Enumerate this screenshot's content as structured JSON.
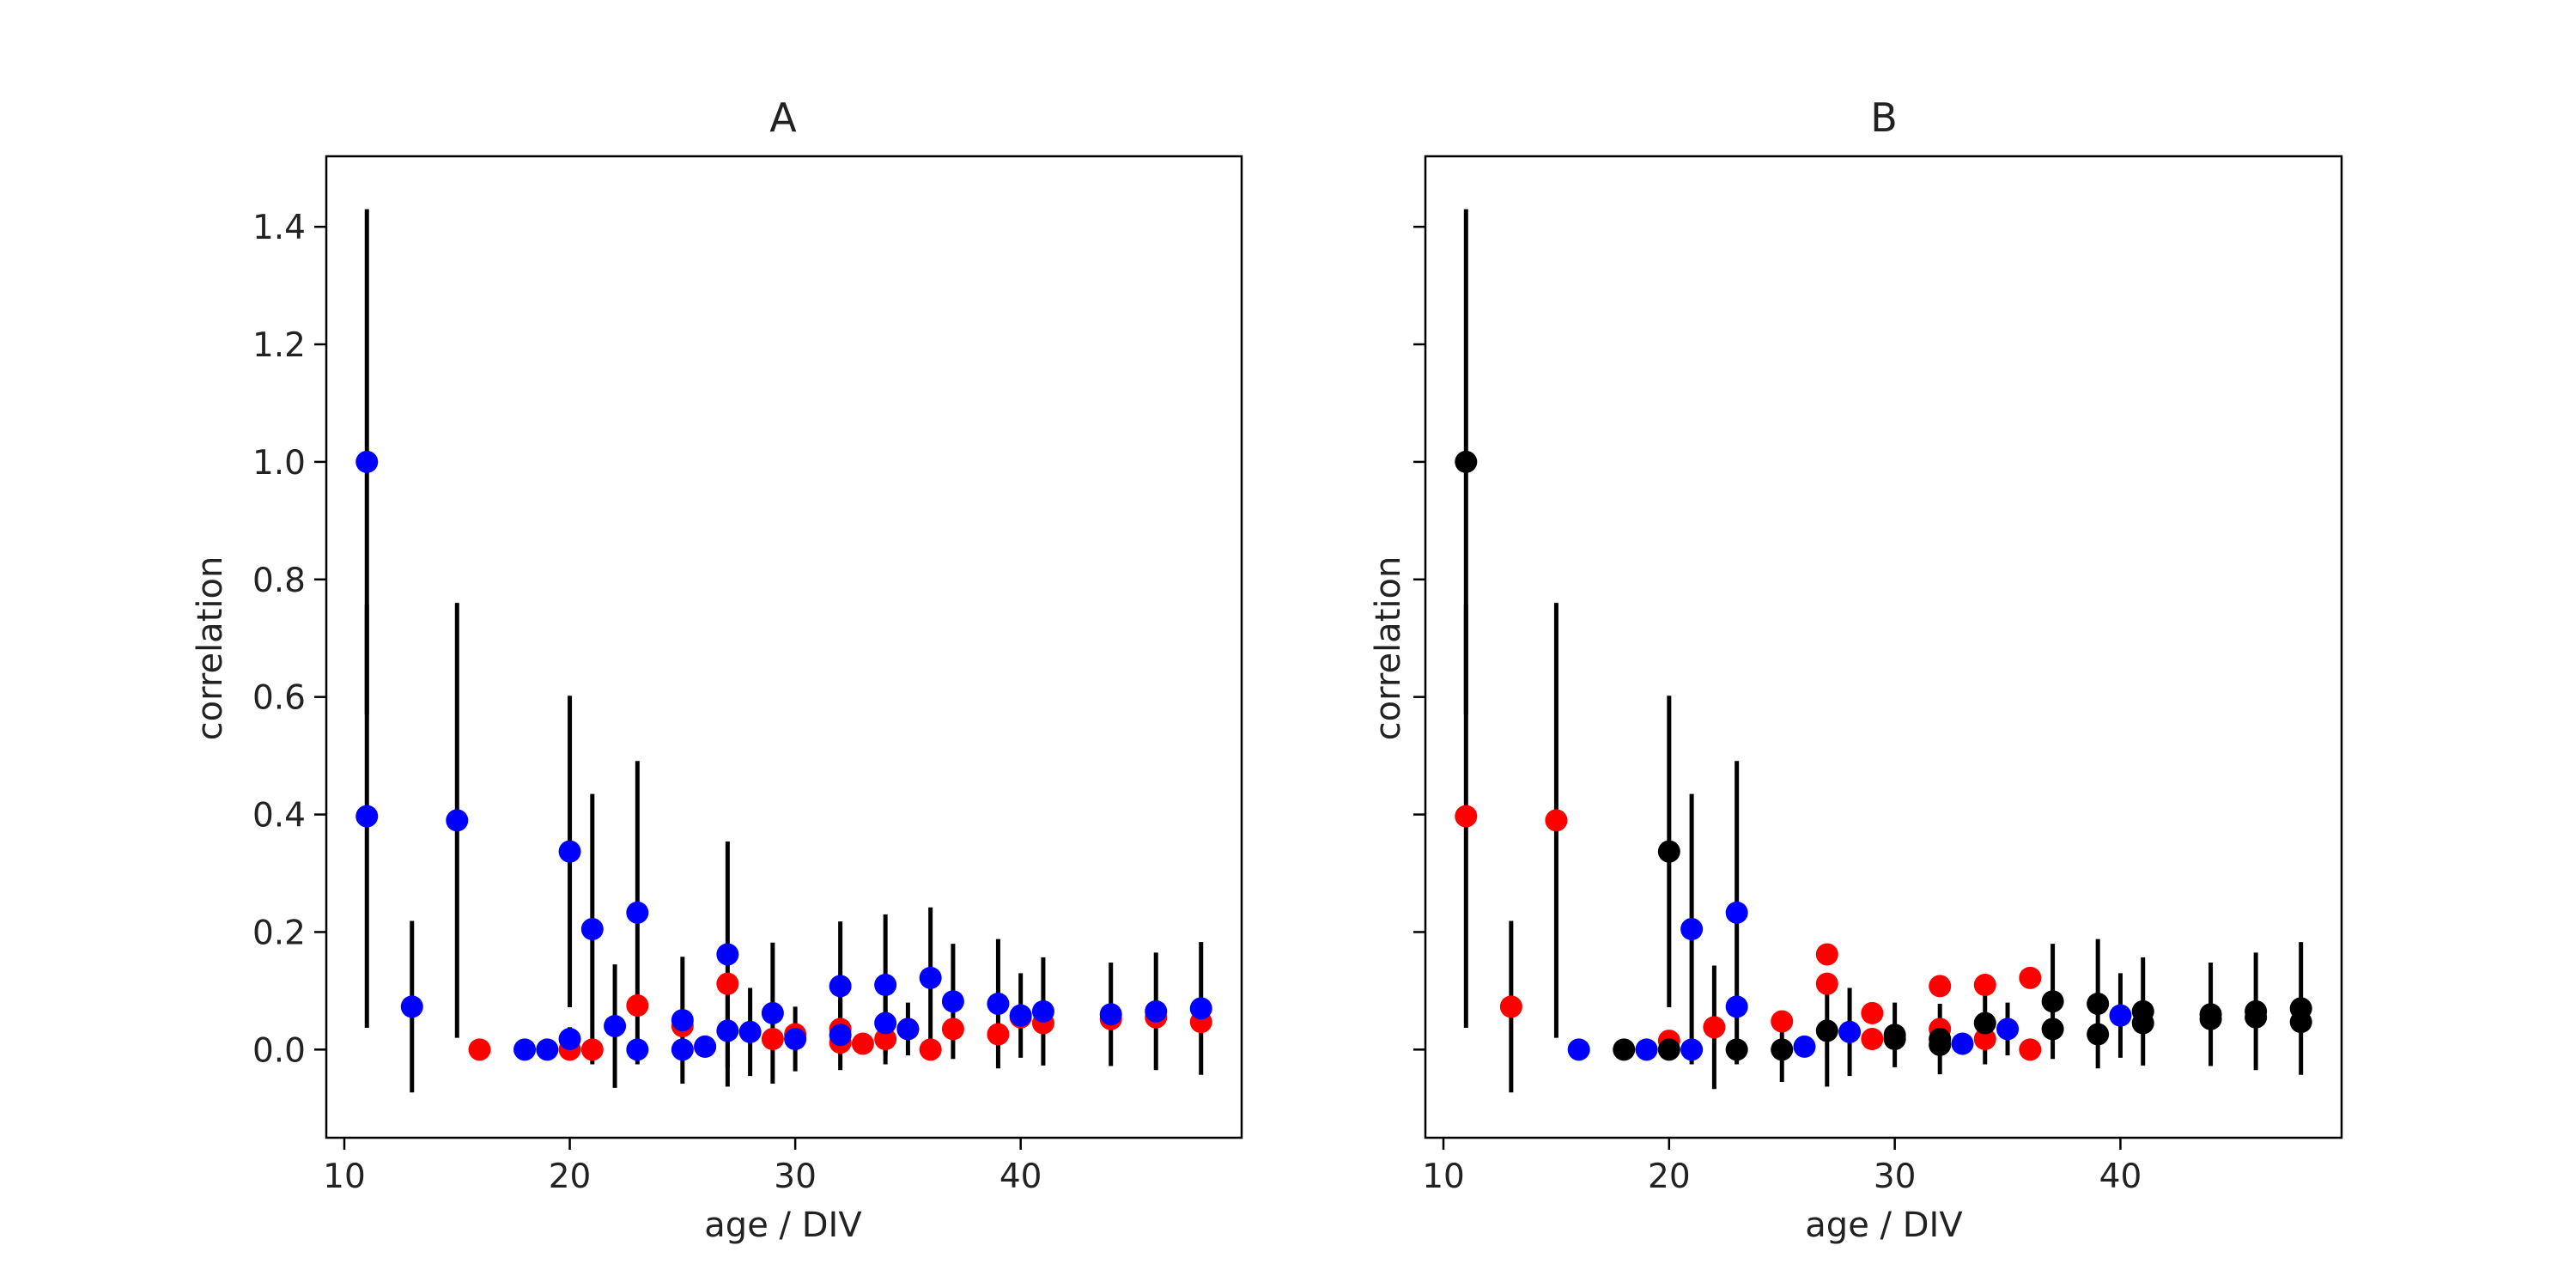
{
  "chart_data": [
    {
      "type": "scatter",
      "title": "A",
      "xlabel": "age / DIV",
      "ylabel": "correlation",
      "xlim": [
        9.2,
        49.8
      ],
      "ylim": [
        -0.15,
        1.52
      ],
      "xticks": [
        10,
        20,
        30,
        40
      ],
      "yticks": [
        0.0,
        0.2,
        0.4,
        0.6,
        0.8,
        1.0,
        1.2,
        1.4
      ],
      "grid": false,
      "legend": "none",
      "series": [
        {
          "color": "#ff0000",
          "points": [
            {
              "x": 16,
              "y": 0.0
            },
            {
              "x": 20,
              "y": 0.0
            },
            {
              "x": 21,
              "y": 0.0
            },
            {
              "x": 23,
              "y": 0.075
            },
            {
              "x": 25,
              "y": 0.04
            },
            {
              "x": 26,
              "y": 0.005
            },
            {
              "x": 27,
              "y": 0.112
            },
            {
              "x": 29,
              "y": 0.018
            },
            {
              "x": 30,
              "y": 0.026
            },
            {
              "x": 32,
              "y": 0.012
            },
            {
              "x": 32,
              "y": 0.035
            },
            {
              "x": 33,
              "y": 0.01
            },
            {
              "x": 34,
              "y": 0.018
            },
            {
              "x": 35,
              "y": 0.035
            },
            {
              "x": 36,
              "y": 0.0
            },
            {
              "x": 37,
              "y": 0.035
            },
            {
              "x": 39,
              "y": 0.026
            },
            {
              "x": 40,
              "y": 0.055
            },
            {
              "x": 41,
              "y": 0.045
            },
            {
              "x": 44,
              "y": 0.052
            },
            {
              "x": 46,
              "y": 0.055
            },
            {
              "x": 48,
              "y": 0.047
            }
          ]
        },
        {
          "color": "#0000ff",
          "points": [
            {
              "x": 11,
              "y": 1.0,
              "err": 0.43
            },
            {
              "x": 11,
              "y": 0.397,
              "err": 0.36
            },
            {
              "x": 13,
              "y": 0.073,
              "err": 0.146
            },
            {
              "x": 15,
              "y": 0.39,
              "err": 0.37
            },
            {
              "x": 18,
              "y": 0.0
            },
            {
              "x": 19,
              "y": 0.0
            },
            {
              "x": 20,
              "y": 0.337,
              "err": 0.265
            },
            {
              "x": 20,
              "y": 0.018,
              "err": 0.02
            },
            {
              "x": 21,
              "y": 0.205,
              "err": 0.23
            },
            {
              "x": 22,
              "y": 0.04,
              "err": 0.105
            },
            {
              "x": 23,
              "y": 0.233,
              "err": 0.258
            },
            {
              "x": 23,
              "y": 0.0,
              "err": 0.02
            },
            {
              "x": 25,
              "y": 0.05,
              "err": 0.108
            },
            {
              "x": 25,
              "y": 0.0
            },
            {
              "x": 26,
              "y": 0.005
            },
            {
              "x": 27,
              "y": 0.162,
              "err": 0.192
            },
            {
              "x": 27,
              "y": 0.032,
              "err": 0.095
            },
            {
              "x": 28,
              "y": 0.03,
              "err": 0.075
            },
            {
              "x": 29,
              "y": 0.062,
              "err": 0.12
            },
            {
              "x": 30,
              "y": 0.018,
              "err": 0.055
            },
            {
              "x": 32,
              "y": 0.108,
              "err": 0.11
            },
            {
              "x": 32,
              "y": 0.025,
              "err": 0.06
            },
            {
              "x": 34,
              "y": 0.11,
              "err": 0.12
            },
            {
              "x": 34,
              "y": 0.045,
              "err": 0.07
            },
            {
              "x": 35,
              "y": 0.035,
              "err": 0.045
            },
            {
              "x": 36,
              "y": 0.122,
              "err": 0.12
            },
            {
              "x": 37,
              "y": 0.082,
              "err": 0.098
            },
            {
              "x": 39,
              "y": 0.078,
              "err": 0.11
            },
            {
              "x": 40,
              "y": 0.058,
              "err": 0.072
            },
            {
              "x": 41,
              "y": 0.065,
              "err": 0.092
            },
            {
              "x": 44,
              "y": 0.06,
              "err": 0.088
            },
            {
              "x": 46,
              "y": 0.065,
              "err": 0.1
            },
            {
              "x": 48,
              "y": 0.07,
              "err": 0.113
            }
          ]
        }
      ]
    },
    {
      "type": "scatter",
      "title": "B",
      "xlabel": "age / DIV",
      "ylabel": "correlation",
      "xlim": [
        9.2,
        49.8
      ],
      "ylim": [
        -0.15,
        1.52
      ],
      "xticks": [
        10,
        20,
        30,
        40
      ],
      "yticks": [
        0.0,
        0.2,
        0.4,
        0.6,
        0.8,
        1.0,
        1.2,
        1.4
      ],
      "ytick_labels_shown": false,
      "grid": false,
      "legend": "none",
      "series": [
        {
          "color": "#ff0000",
          "points": [
            {
              "x": 11,
              "y": 0.397,
              "err": 0.36
            },
            {
              "x": 13,
              "y": 0.073,
              "err": 0.146
            },
            {
              "x": 15,
              "y": 0.39,
              "err": 0.37
            },
            {
              "x": 20,
              "y": 0.015
            },
            {
              "x": 22,
              "y": 0.038,
              "err": 0.105
            },
            {
              "x": 25,
              "y": 0.048
            },
            {
              "x": 27,
              "y": 0.162
            },
            {
              "x": 27,
              "y": 0.112
            },
            {
              "x": 29,
              "y": 0.062
            },
            {
              "x": 29,
              "y": 0.018
            },
            {
              "x": 32,
              "y": 0.108
            },
            {
              "x": 32,
              "y": 0.035
            },
            {
              "x": 34,
              "y": 0.11
            },
            {
              "x": 34,
              "y": 0.018
            },
            {
              "x": 36,
              "y": 0.122
            },
            {
              "x": 36,
              "y": 0.0
            }
          ]
        },
        {
          "color": "#0000ff",
          "points": [
            {
              "x": 16,
              "y": 0.0
            },
            {
              "x": 19,
              "y": 0.0
            },
            {
              "x": 21,
              "y": 0.205,
              "err": 0.23
            },
            {
              "x": 21,
              "y": 0.0
            },
            {
              "x": 23,
              "y": 0.233,
              "err": 0.258
            },
            {
              "x": 23,
              "y": 0.073
            },
            {
              "x": 26,
              "y": 0.005
            },
            {
              "x": 28,
              "y": 0.03,
              "err": 0.075
            },
            {
              "x": 33,
              "y": 0.01
            },
            {
              "x": 35,
              "y": 0.035,
              "err": 0.045
            },
            {
              "x": 40,
              "y": 0.058,
              "err": 0.072
            }
          ]
        },
        {
          "color": "#000000",
          "points": [
            {
              "x": 11,
              "y": 1.0,
              "err": 0.43
            },
            {
              "x": 18,
              "y": 0.0
            },
            {
              "x": 20,
              "y": 0.337,
              "err": 0.265
            },
            {
              "x": 20,
              "y": 0.0
            },
            {
              "x": 23,
              "y": 0.0
            },
            {
              "x": 25,
              "y": 0.0,
              "err": 0.055
            },
            {
              "x": 27,
              "y": 0.032,
              "err": 0.095
            },
            {
              "x": 30,
              "y": 0.025,
              "err": 0.055
            },
            {
              "x": 30,
              "y": 0.018
            },
            {
              "x": 32,
              "y": 0.018,
              "err": 0.06
            },
            {
              "x": 32,
              "y": 0.008
            },
            {
              "x": 34,
              "y": 0.045,
              "err": 0.07
            },
            {
              "x": 37,
              "y": 0.082,
              "err": 0.098
            },
            {
              "x": 37,
              "y": 0.035
            },
            {
              "x": 39,
              "y": 0.078,
              "err": 0.11
            },
            {
              "x": 39,
              "y": 0.026
            },
            {
              "x": 41,
              "y": 0.065,
              "err": 0.092
            },
            {
              "x": 41,
              "y": 0.045
            },
            {
              "x": 44,
              "y": 0.06,
              "err": 0.088
            },
            {
              "x": 44,
              "y": 0.052
            },
            {
              "x": 46,
              "y": 0.065,
              "err": 0.1
            },
            {
              "x": 46,
              "y": 0.055
            },
            {
              "x": 48,
              "y": 0.07,
              "err": 0.113
            },
            {
              "x": 48,
              "y": 0.047
            }
          ]
        }
      ]
    }
  ]
}
